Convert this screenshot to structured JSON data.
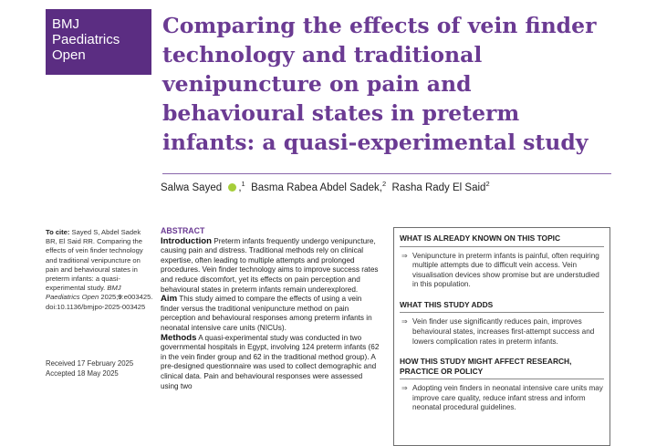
{
  "journal": {
    "line1": "BMJ",
    "line2": "Paediatrics",
    "line3": "Open"
  },
  "article": {
    "title": "Comparing the effects of vein finder technology and traditional venipuncture on pain and behavioural states in preterm infants: a quasi-experimental study",
    "authors": [
      {
        "name": "Salwa Sayed",
        "aff": "1",
        "sep": ",",
        "orcid": true
      },
      {
        "name": "Basma Rabea Abdel Sadek",
        "aff": "2",
        "sep": ",",
        "orcid": false
      },
      {
        "name": "Rasha Rady El Said",
        "aff": "2",
        "sep": "",
        "orcid": false
      }
    ]
  },
  "citation": {
    "label": "To cite:",
    "text1": " Sayed S, Abdel Sadek BR, El Said RR. Comparing the effects of vein finder technology and traditional venipuncture on pain and behavioural states in preterm infants: a quasi-experimental study. ",
    "journal_italic": "BMJ Paediatrics Open",
    "text2": " 2025;",
    "volume": "9",
    "text3": ":e003425. doi:10.1136/bmjpo-2025-003425"
  },
  "dates": {
    "received": "Received 17 February 2025",
    "accepted": "Accepted 18 May 2025"
  },
  "abstract": {
    "heading": "ABSTRACT",
    "intro_h": "Introduction",
    "intro": " Preterm infants frequently undergo venipuncture, causing pain and distress. Traditional methods rely on clinical expertise, often leading to multiple attempts and prolonged procedures. Vein finder technology aims to improve success rates and reduce discomfort, yet its effects on pain perception and behavioural states in preterm infants remain underexplored.",
    "aim_h": "Aim",
    "aim": " This study aimed to compare the effects of using a vein finder versus the traditional venipuncture method on pain perception and behavioural responses among preterm infants in neonatal intensive care units (NICUs).",
    "methods_h": "Methods",
    "methods": " A quasi-experimental study was conducted in two governmental hospitals in Egypt, involving 124 preterm infants (62 in the vein finder group and 62 in the traditional method group). A pre-designed questionnaire was used to collect demographic and clinical data. Pain and behavioural responses were assessed using two"
  },
  "box": {
    "sections": [
      {
        "heading": "WHAT IS ALREADY KNOWN ON THIS TOPIC",
        "item": "Venipuncture in preterm infants is painful, often requiring multiple attempts due to difficult vein access. Vein visualisation devices show promise but are understudied in this population."
      },
      {
        "heading": "WHAT THIS STUDY ADDS",
        "item": "Vein finder use significantly reduces pain, improves behavioural states, increases first-attempt success and lowers complication rates in preterm infants."
      },
      {
        "heading": "HOW THIS STUDY MIGHT AFFECT RESEARCH, PRACTICE OR POLICY",
        "item": "Adopting vein finders in neonatal intensive care units may improve care quality, reduce infant stress and inform neonatal procedural guidelines."
      }
    ]
  }
}
